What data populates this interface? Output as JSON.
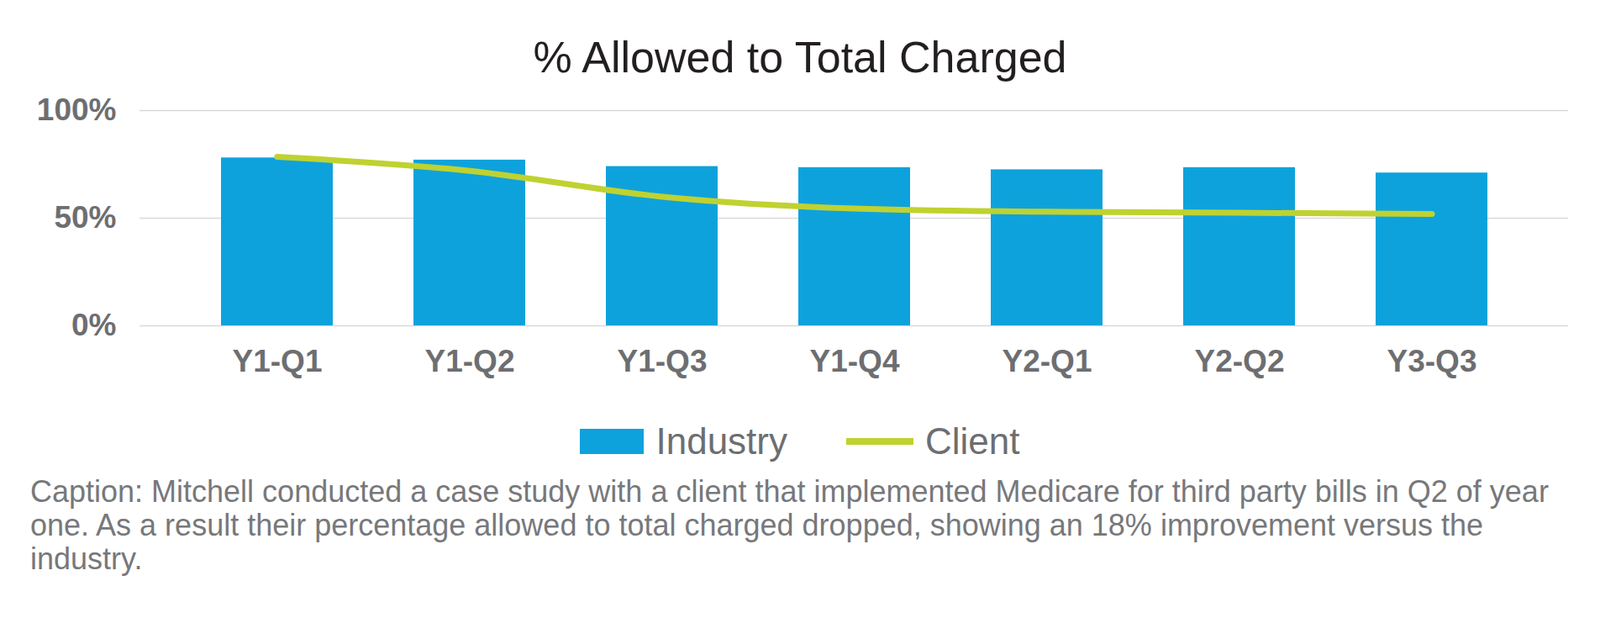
{
  "chart_data": {
    "type": "bar",
    "title": "% Allowed to Total Charged",
    "caption": "Caption: Mitchell conducted a case study with a client that implemented Medicare for third party bills in Q2 of year one. As a result their percentage allowed to total charged dropped, showing an 18% improvement versus the industry.",
    "categories": [
      "Y1-Q1",
      "Y1-Q2",
      "Y1-Q3",
      "Y1-Q4",
      "Y2-Q1",
      "Y2-Q2",
      "Y3-Q3"
    ],
    "series": [
      {
        "name": "Industry",
        "type": "bar",
        "color": "#0ea2dc",
        "values": [
          78,
          77,
          74,
          73.5,
          72.5,
          73.5,
          71
        ]
      },
      {
        "name": "Client",
        "type": "line",
        "color": "#bfd230",
        "values": [
          78.5,
          72,
          60,
          54.5,
          53,
          52.5,
          52
        ]
      }
    ],
    "ylim": [
      0,
      100
    ],
    "yticks": [
      {
        "value": 0,
        "label": "0%"
      },
      {
        "value": 50,
        "label": "50%"
      },
      {
        "value": 100,
        "label": "100%"
      }
    ],
    "grid": true,
    "legend": "bottom"
  }
}
